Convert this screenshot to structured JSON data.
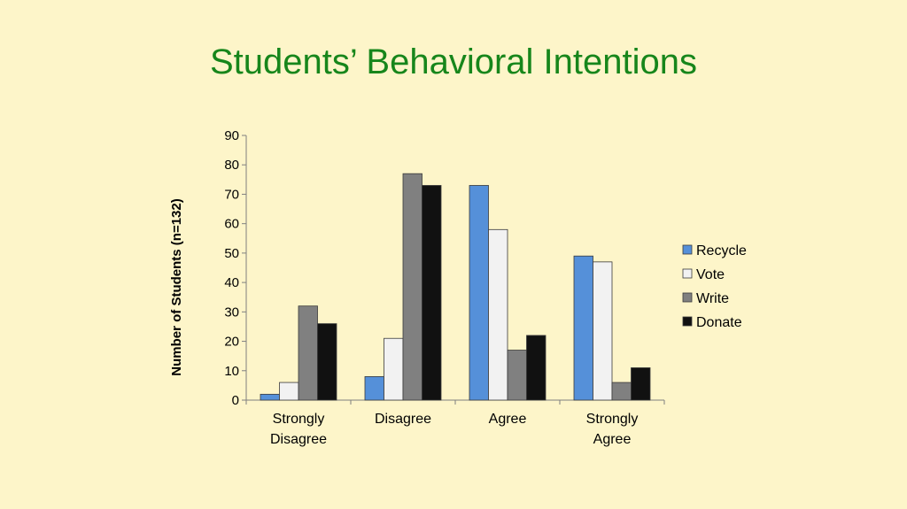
{
  "slide": {
    "title": "Students’ Behavioral Intentions"
  },
  "chart_data": {
    "type": "bar",
    "title": "",
    "ylabel": "Number of Students (n=132)",
    "xlabel": "",
    "categories": [
      [
        "Strongly",
        "Disagree"
      ],
      [
        "Disagree"
      ],
      [
        "Agree"
      ],
      [
        "Strongly",
        "Agree"
      ]
    ],
    "series": [
      {
        "name": "Recycle",
        "color": "#5590d9",
        "values": [
          2,
          8,
          73,
          49
        ]
      },
      {
        "name": "Vote",
        "color": "#f2f2f2",
        "values": [
          6,
          21,
          58,
          47
        ]
      },
      {
        "name": "Write",
        "color": "#808080",
        "values": [
          32,
          77,
          17,
          6
        ]
      },
      {
        "name": "Donate",
        "color": "#111111",
        "values": [
          26,
          73,
          22,
          11
        ]
      }
    ],
    "ylim": [
      0,
      90
    ],
    "yticks": [
      0,
      10,
      20,
      30,
      40,
      50,
      60,
      70,
      80,
      90
    ],
    "grid": false,
    "legend": "right"
  }
}
